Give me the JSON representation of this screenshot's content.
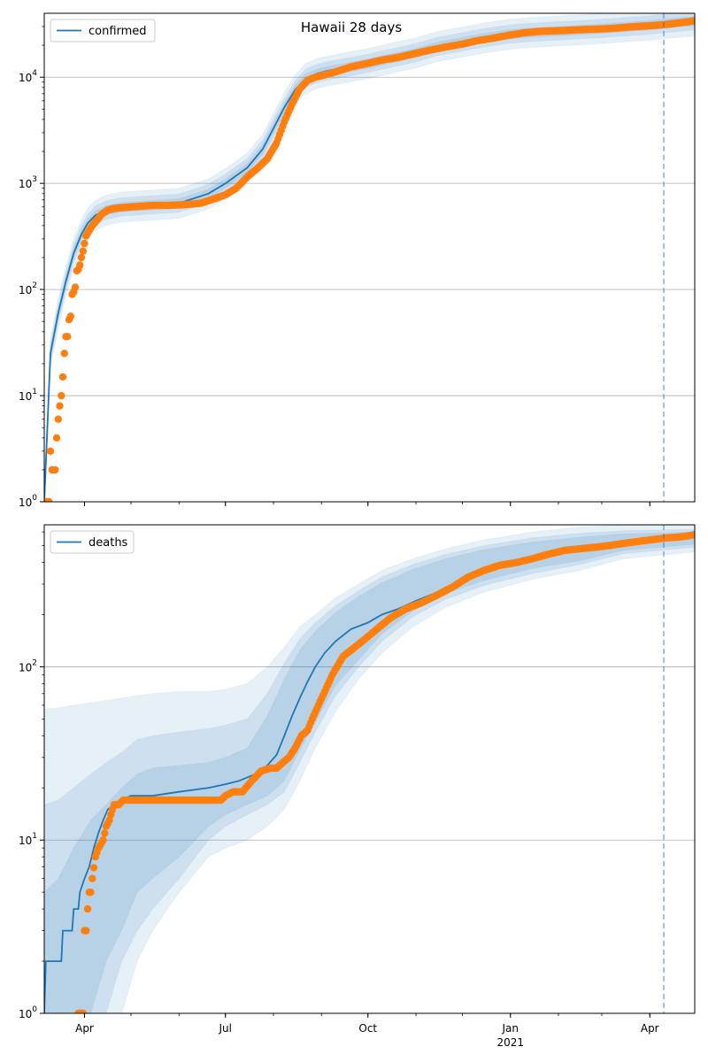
{
  "figure_title": "Hawaii 28 days",
  "colors": {
    "model_line": "#1f77b4",
    "observed": "#ff7f0e",
    "band": "#1f77b4",
    "grid": "#b0b0b0",
    "vline": "#1f77b4"
  },
  "x_axis": {
    "start": "2020-03-06",
    "end": "2021-04-30",
    "ticks": [
      {
        "date": "2020-04-01",
        "label": "Apr",
        "sublabel": ""
      },
      {
        "date": "2020-07-01",
        "label": "Jul",
        "sublabel": ""
      },
      {
        "date": "2020-10-01",
        "label": "Oct",
        "sublabel": ""
      },
      {
        "date": "2021-01-01",
        "label": "Jan",
        "sublabel": "2021"
      },
      {
        "date": "2021-04-01",
        "label": "Apr",
        "sublabel": ""
      }
    ]
  },
  "forecast_start": "2021-04-10",
  "chart_data": [
    {
      "type": "line",
      "yscale": "log",
      "ylim": [
        1,
        40000
      ],
      "grid": "y-major",
      "legend": {
        "position": "top-left",
        "entries": [
          "confirmed"
        ]
      },
      "y_ticks": [
        {
          "value": 1,
          "base": "10",
          "exp": "0"
        },
        {
          "value": 10,
          "base": "10",
          "exp": "1"
        },
        {
          "value": 100,
          "base": "10",
          "exp": "2"
        },
        {
          "value": 1000,
          "base": "10",
          "exp": "3"
        },
        {
          "value": 10000,
          "base": "10",
          "exp": "4"
        }
      ],
      "series": [
        {
          "name": "confirmed",
          "kind": "model",
          "x": [
            "2020-03-06",
            "2020-03-10",
            "2020-03-15",
            "2020-03-20",
            "2020-03-25",
            "2020-03-30",
            "2020-04-03",
            "2020-04-08",
            "2020-04-15",
            "2020-04-25",
            "2020-05-10",
            "2020-06-01",
            "2020-06-20",
            "2020-07-01",
            "2020-07-15",
            "2020-07-25",
            "2020-08-01",
            "2020-08-08",
            "2020-08-15",
            "2020-08-22",
            "2020-08-29",
            "2020-09-05",
            "2020-09-15",
            "2020-10-01",
            "2020-10-15",
            "2020-11-01",
            "2020-11-15",
            "2020-12-01",
            "2020-12-15",
            "2021-01-01",
            "2021-01-15",
            "2021-02-01",
            "2021-02-15",
            "2021-03-01",
            "2021-03-15",
            "2021-04-01",
            "2021-04-10",
            "2021-04-20",
            "2021-04-30"
          ],
          "y": [
            1,
            25,
            60,
            120,
            220,
            330,
            420,
            500,
            560,
            600,
            620,
            650,
            800,
            1000,
            1400,
            2100,
            3300,
            5200,
            7600,
            9800,
            10800,
            11500,
            12200,
            13500,
            15000,
            17000,
            19500,
            21500,
            23500,
            25500,
            26500,
            27300,
            28000,
            28800,
            29800,
            31000,
            32000,
            33000,
            34000
          ]
        },
        {
          "name": "",
          "kind": "observed",
          "x": [
            "2020-03-06",
            "2020-03-07",
            "2020-03-08",
            "2020-03-09",
            "2020-03-10",
            "2020-03-11",
            "2020-03-12",
            "2020-03-13",
            "2020-03-14",
            "2020-03-15",
            "2020-03-16",
            "2020-03-17",
            "2020-03-18",
            "2020-03-19",
            "2020-03-20",
            "2020-03-21",
            "2020-03-22",
            "2020-03-23",
            "2020-03-24",
            "2020-03-25",
            "2020-03-26",
            "2020-03-27",
            "2020-03-28",
            "2020-03-29",
            "2020-03-30",
            "2020-03-31",
            "2020-04-02",
            "2020-04-04",
            "2020-04-06",
            "2020-04-09",
            "2020-04-12",
            "2020-04-16",
            "2020-04-20",
            "2020-04-25",
            "2020-05-01",
            "2020-05-08",
            "2020-05-15",
            "2020-05-25",
            "2020-06-05",
            "2020-06-15",
            "2020-06-22",
            "2020-07-01",
            "2020-07-08",
            "2020-07-15",
            "2020-07-22",
            "2020-07-28",
            "2020-08-03",
            "2020-08-08",
            "2020-08-13",
            "2020-08-18",
            "2020-08-23",
            "2020-08-28",
            "2020-09-03",
            "2020-09-10",
            "2020-09-20",
            "2020-10-01",
            "2020-10-10",
            "2020-10-20",
            "2020-11-01",
            "2020-11-10",
            "2020-11-20",
            "2020-12-01",
            "2020-12-10",
            "2020-12-20",
            "2021-01-01",
            "2021-01-10",
            "2021-01-20",
            "2021-02-01",
            "2021-02-10",
            "2021-02-20",
            "2021-03-01",
            "2021-03-10",
            "2021-03-20",
            "2021-04-01",
            "2021-04-10",
            "2021-04-15",
            "2021-04-20",
            "2021-04-25",
            "2021-04-30"
          ],
          "y": [
            1,
            1,
            1,
            1,
            3,
            2,
            2,
            2,
            4,
            6,
            8,
            10,
            15,
            25,
            36,
            36,
            52,
            56,
            90,
            95,
            105,
            150,
            155,
            170,
            200,
            230,
            320,
            360,
            400,
            450,
            510,
            560,
            580,
            590,
            600,
            610,
            620,
            620,
            630,
            650,
            700,
            780,
            900,
            1150,
            1400,
            1700,
            2400,
            3800,
            5600,
            7800,
            9300,
            10000,
            10500,
            11200,
            12500,
            13500,
            14500,
            15300,
            16800,
            18000,
            19200,
            20500,
            22000,
            23200,
            25000,
            26200,
            27000,
            27400,
            27800,
            28200,
            28500,
            29000,
            29800,
            30500,
            31200,
            31800,
            32500,
            33200,
            34000
          ]
        }
      ],
      "bands": [
        {
          "level": "outer",
          "lower_factor": 0.72,
          "upper_factor": 1.38
        },
        {
          "level": "middle",
          "lower_factor": 0.82,
          "upper_factor": 1.22
        },
        {
          "level": "inner",
          "lower_factor": 0.9,
          "upper_factor": 1.1
        }
      ]
    },
    {
      "type": "line",
      "yscale": "log",
      "ylim": [
        1,
        660
      ],
      "grid": "y-major",
      "legend": {
        "position": "top-left",
        "entries": [
          "deaths"
        ]
      },
      "y_ticks": [
        {
          "value": 1,
          "base": "10",
          "exp": "0"
        },
        {
          "value": 10,
          "base": "10",
          "exp": "1"
        },
        {
          "value": 100,
          "base": "10",
          "exp": "2"
        }
      ],
      "series": [
        {
          "name": "deaths",
          "kind": "model",
          "x": [
            "2020-03-06",
            "2020-03-07",
            "2020-03-17",
            "2020-03-18",
            "2020-03-24",
            "2020-03-25",
            "2020-03-28",
            "2020-03-29",
            "2020-04-01",
            "2020-04-04",
            "2020-04-07",
            "2020-04-10",
            "2020-04-13",
            "2020-04-16",
            "2020-04-20",
            "2020-04-25",
            "2020-05-01",
            "2020-05-15",
            "2020-06-01",
            "2020-06-20",
            "2020-07-01",
            "2020-07-10",
            "2020-07-20",
            "2020-07-28",
            "2020-08-03",
            "2020-08-08",
            "2020-08-13",
            "2020-08-18",
            "2020-08-23",
            "2020-08-28",
            "2020-09-03",
            "2020-09-10",
            "2020-09-20",
            "2020-10-01",
            "2020-10-10",
            "2020-10-20",
            "2020-11-01",
            "2020-11-15",
            "2020-12-01",
            "2020-12-15",
            "2021-01-01",
            "2021-01-15",
            "2021-02-01",
            "2021-02-15",
            "2021-03-01",
            "2021-03-15",
            "2021-04-01",
            "2021-04-10",
            "2021-04-20",
            "2021-04-30"
          ],
          "y": [
            1,
            2,
            2,
            3,
            3,
            4,
            4,
            5,
            6,
            7,
            9,
            11,
            13,
            15,
            16,
            17,
            18,
            18,
            19,
            20,
            21,
            22,
            24,
            27,
            31,
            40,
            52,
            66,
            82,
            100,
            120,
            140,
            165,
            180,
            200,
            215,
            240,
            270,
            320,
            360,
            390,
            410,
            450,
            470,
            490,
            510,
            530,
            545,
            560,
            580
          ]
        },
        {
          "name": "",
          "kind": "observed",
          "x": [
            "2020-03-28",
            "2020-03-29",
            "2020-03-30",
            "2020-03-31",
            "2020-04-01",
            "2020-04-02",
            "2020-04-03",
            "2020-04-04",
            "2020-04-05",
            "2020-04-06",
            "2020-04-08",
            "2020-04-10",
            "2020-04-13",
            "2020-04-15",
            "2020-04-17",
            "2020-04-18",
            "2020-04-20",
            "2020-04-23",
            "2020-04-26",
            "2020-05-05",
            "2020-05-20",
            "2020-06-05",
            "2020-06-20",
            "2020-06-28",
            "2020-07-01",
            "2020-07-06",
            "2020-07-12",
            "2020-07-18",
            "2020-07-24",
            "2020-07-30",
            "2020-08-03",
            "2020-08-07",
            "2020-08-11",
            "2020-08-15",
            "2020-08-19",
            "2020-08-23",
            "2020-08-26",
            "2020-08-30",
            "2020-09-04",
            "2020-09-08",
            "2020-09-15",
            "2020-09-25",
            "2020-10-05",
            "2020-10-15",
            "2020-10-25",
            "2020-11-05",
            "2020-11-15",
            "2020-11-25",
            "2020-12-05",
            "2020-12-15",
            "2020-12-25",
            "2021-01-05",
            "2021-01-15",
            "2021-01-25",
            "2021-02-05",
            "2021-02-15",
            "2021-02-25",
            "2021-03-05",
            "2021-03-15",
            "2021-03-25",
            "2021-04-05",
            "2021-04-12",
            "2021-04-19",
            "2021-04-26",
            "2021-04-30"
          ],
          "y": [
            1,
            1,
            1,
            1,
            3,
            3,
            4,
            5,
            5,
            6,
            8,
            9,
            10,
            12,
            13,
            14,
            16,
            16,
            17,
            17,
            17,
            17,
            17,
            17,
            18,
            19,
            19,
            22,
            25,
            26,
            26,
            28,
            30,
            34,
            40,
            43,
            50,
            60,
            75,
            90,
            115,
            135,
            160,
            190,
            215,
            235,
            260,
            290,
            330,
            360,
            385,
            400,
            420,
            445,
            470,
            480,
            490,
            500,
            515,
            530,
            545,
            555,
            560,
            570,
            580
          ]
        }
      ],
      "bands": [
        {
          "level": "outer",
          "lower": [
            1,
            1,
            1,
            1,
            1,
            1,
            2,
            3,
            5,
            8,
            9,
            10,
            12,
            15,
            22,
            34,
            55,
            85,
            120,
            170,
            220,
            270,
            320,
            360,
            420,
            460
          ],
          "upper": [
            57,
            58,
            60,
            62,
            64,
            66,
            68,
            70,
            72,
            72,
            74,
            80,
            100,
            130,
            170,
            200,
            250,
            300,
            360,
            420,
            480,
            540,
            600,
            640,
            660,
            670
          ]
        },
        {
          "level": "middle",
          "lower": [
            1,
            1,
            1,
            1,
            1,
            2,
            3,
            4,
            6,
            10,
            12,
            14,
            16,
            19,
            28,
            42,
            68,
            100,
            140,
            195,
            245,
            295,
            345,
            390,
            450,
            490
          ],
          "upper": [
            16,
            17,
            20,
            24,
            28,
            32,
            38,
            40,
            42,
            44,
            46,
            50,
            70,
            105,
            145,
            180,
            225,
            275,
            330,
            390,
            445,
            500,
            555,
            590,
            610,
            620
          ]
        },
        {
          "level": "inner",
          "lower": [
            1,
            1,
            1,
            1,
            2,
            3,
            5,
            6,
            8,
            12,
            14,
            16,
            18,
            22,
            33,
            48,
            78,
            110,
            155,
            210,
            265,
            315,
            370,
            410,
            470,
            510
          ],
          "upper": [
            5,
            6,
            9,
            13,
            16,
            20,
            24,
            26,
            27,
            28,
            30,
            34,
            52,
            85,
            125,
            160,
            205,
            255,
            305,
            365,
            420,
            475,
            525,
            560,
            585,
            600
          ]
        }
      ],
      "band_x": [
        "2020-03-06",
        "2020-03-15",
        "2020-03-25",
        "2020-04-05",
        "2020-04-15",
        "2020-04-25",
        "2020-05-05",
        "2020-05-15",
        "2020-06-01",
        "2020-06-20",
        "2020-07-01",
        "2020-07-15",
        "2020-07-28",
        "2020-08-08",
        "2020-08-18",
        "2020-08-28",
        "2020-09-10",
        "2020-09-25",
        "2020-10-10",
        "2020-10-30",
        "2020-11-20",
        "2020-12-15",
        "2021-01-15",
        "2021-02-15",
        "2021-03-15",
        "2021-04-30"
      ]
    }
  ]
}
